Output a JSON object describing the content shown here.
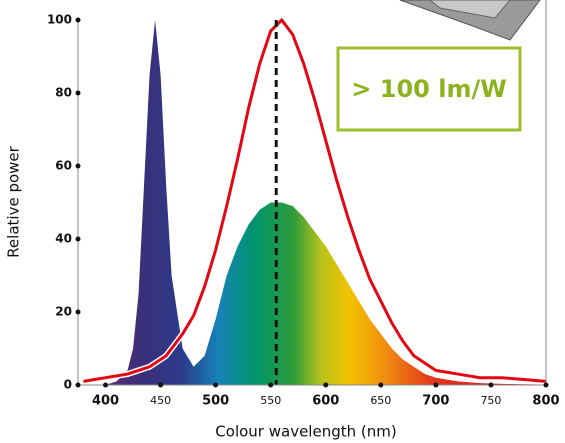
{
  "chart_data": {
    "type": "area-line",
    "xlabel": "Colour wavelength (nm)",
    "ylabel": "Relative power",
    "annotation": "> 100 lm/W",
    "vline": 555,
    "x": [
      380,
      390,
      400,
      410,
      420,
      425,
      430,
      435,
      440,
      445,
      450,
      455,
      460,
      470,
      480,
      490,
      500,
      510,
      520,
      530,
      540,
      550,
      560,
      570,
      580,
      590,
      600,
      610,
      620,
      630,
      640,
      650,
      660,
      670,
      680,
      690,
      700,
      720,
      740,
      760,
      780,
      800
    ],
    "series": [
      {
        "values": [
          0,
          0,
          0,
          1,
          4,
          10,
          25,
          55,
          85,
          100,
          85,
          55,
          30,
          10,
          5,
          8,
          18,
          30,
          38,
          44,
          48,
          50,
          50,
          49,
          46,
          42,
          38,
          33,
          28,
          23,
          18,
          14,
          10,
          7,
          5,
          3,
          2,
          1,
          0.5,
          0.3,
          0.2,
          0.1
        ]
      },
      {
        "color": "#e30613",
        "values": [
          1,
          1.5,
          2,
          2.5,
          3,
          3.5,
          4,
          4.5,
          5,
          6,
          7,
          8,
          10,
          14,
          19,
          27,
          37,
          49,
          62,
          76,
          88,
          97,
          100,
          96,
          88,
          78,
          67,
          56,
          46,
          37,
          29,
          23,
          17,
          12,
          8,
          6,
          4,
          3,
          2,
          2,
          1.5,
          1
        ]
      }
    ],
    "xlim": [
      375,
      800
    ],
    "ylim": [
      0,
      100
    ],
    "xticks": [
      400,
      450,
      500,
      550,
      600,
      650,
      700,
      750,
      800
    ],
    "yticks": [
      0,
      20,
      40,
      60,
      80,
      100
    ]
  }
}
